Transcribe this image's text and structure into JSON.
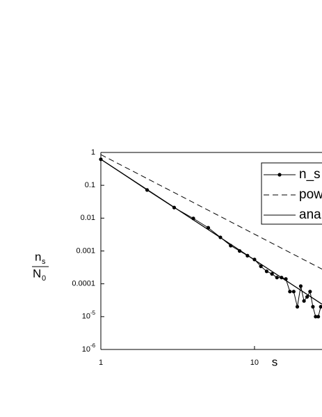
{
  "chart_data": {
    "type": "line",
    "x_label": "s",
    "y_label": {
      "numerator": "n",
      "numerator_sub": "s",
      "denominator": "N",
      "denominator_sub": "0"
    },
    "xscale": "log",
    "yscale": "log",
    "xlim": [
      1,
      27.5
    ],
    "ylim": [
      1e-06,
      1
    ],
    "xticks": [
      1,
      10
    ],
    "yticks": [
      1,
      0.1,
      0.01,
      0.001,
      {
        "value": 0.0001,
        "label": "0.0001"
      },
      {
        "value": 1e-05,
        "label": "10",
        "exponent": "-5"
      },
      {
        "value": 1e-06,
        "label": "10",
        "exponent": "-6"
      }
    ],
    "legend": "top-right",
    "series": [
      {
        "name": "n_s",
        "color": "#000000",
        "style": "solid-markers",
        "x": [
          1,
          2,
          3,
          4,
          5,
          6,
          7,
          8,
          9,
          10,
          11,
          12,
          13,
          14,
          15,
          16,
          17,
          18,
          19,
          20,
          21,
          22,
          23,
          24,
          25,
          26,
          27
        ],
        "values": [
          0.62,
          0.072,
          0.021,
          0.0098,
          0.0051,
          0.0026,
          0.00145,
          0.001,
          0.00072,
          0.00055,
          0.00034,
          0.00024,
          0.0002,
          0.000155,
          0.000155,
          0.00014,
          5.8e-05,
          5.8e-05,
          2e-05,
          8.5e-05,
          3e-05,
          4e-05,
          5.8e-05,
          2e-05,
          1e-05,
          1e-05,
          2e-05
        ]
      },
      {
        "name": "pow",
        "color": "#000000",
        "style": "dashed",
        "x": [
          1,
          27.5
        ],
        "values": [
          0.86,
          0.00028
        ]
      },
      {
        "name": "ana",
        "color": "#000000",
        "style": "solid",
        "x": [
          1,
          27.5
        ],
        "values": [
          0.62,
          2.4e-05
        ]
      }
    ]
  }
}
